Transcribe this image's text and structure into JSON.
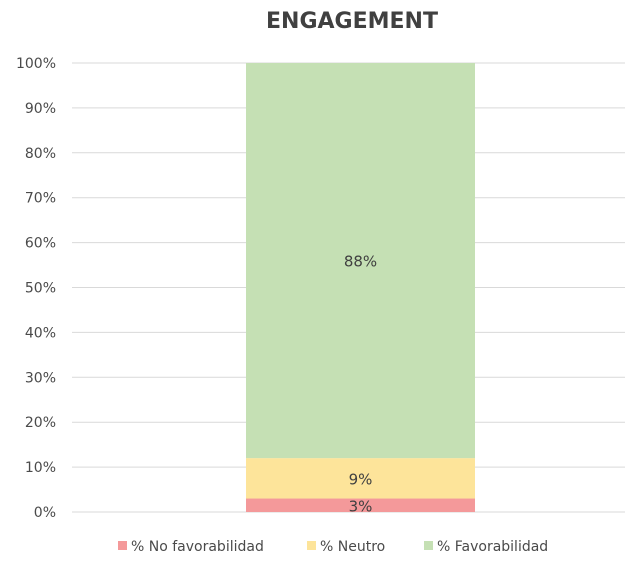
{
  "chart_data": {
    "type": "bar",
    "stacked": true,
    "title": "ENGAGEMENT",
    "categories": [
      ""
    ],
    "series": [
      {
        "name": "% No favorabilidad",
        "values": [
          3
        ],
        "color": "#f4999a",
        "label": "3%"
      },
      {
        "name": "% Neutro",
        "values": [
          9
        ],
        "color": "#fde49a",
        "label": "9%"
      },
      {
        "name": "% Favorabilidad",
        "values": [
          88
        ],
        "color": "#c5e0b4",
        "label": "88%"
      }
    ],
    "ylim": [
      0,
      100
    ],
    "yticks": [
      0,
      10,
      20,
      30,
      40,
      50,
      60,
      70,
      80,
      90,
      100
    ],
    "ytick_labels": [
      "0%",
      "10%",
      "20%",
      "30%",
      "40%",
      "50%",
      "60%",
      "70%",
      "80%",
      "90%",
      "100%"
    ],
    "xlabel": "",
    "ylabel": "",
    "grid": true,
    "legend_position": "bottom"
  }
}
